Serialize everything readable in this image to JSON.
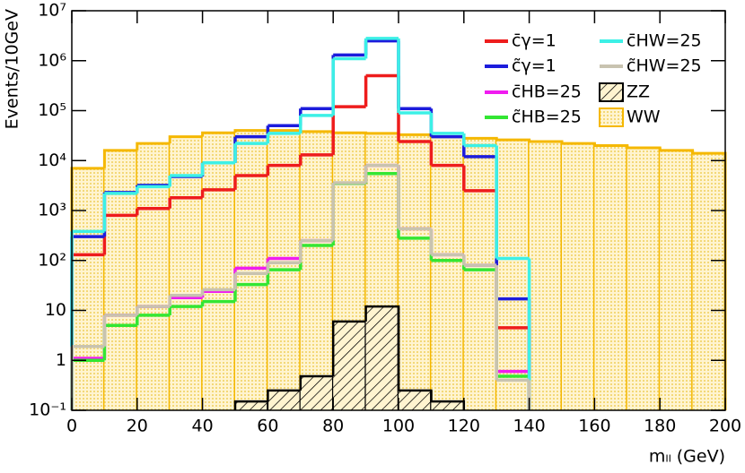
{
  "chart_data": {
    "type": "histogram",
    "xlabel": "mₗₗ (GeV)",
    "ylabel": "Events/10GeV",
    "yscale": "log",
    "legend": "top-right",
    "bins": [
      0,
      10,
      20,
      30,
      40,
      50,
      60,
      70,
      80,
      90,
      100,
      110,
      120,
      130,
      140,
      150,
      160,
      170,
      180,
      190,
      200
    ],
    "xlim": [
      0,
      200
    ],
    "xticks": [
      0,
      20,
      40,
      60,
      80,
      100,
      120,
      140,
      160,
      180,
      200
    ],
    "ylim": [
      0.1,
      10000000
    ],
    "yticks": [
      {
        "value": 0.1,
        "label": "10⁻¹"
      },
      1,
      10,
      {
        "value": 100,
        "label": "10²"
      },
      {
        "value": 1000,
        "label": "10³"
      },
      {
        "value": 10000,
        "label": "10⁴"
      },
      {
        "value": 100000,
        "label": "10⁵"
      },
      {
        "value": 1000000,
        "label": "10⁶"
      },
      {
        "value": 10000000,
        "label": "10⁷"
      }
    ],
    "series": [
      {
        "name": "c̄γ=1",
        "color": "#ee1c1c",
        "values": [
          130,
          800,
          1100,
          1800,
          2600,
          5000,
          8000,
          13000,
          120000,
          500000,
          24000,
          8000,
          2500,
          4.5,
          null,
          null,
          null,
          null,
          null,
          null
        ]
      },
      {
        "name": "c̃γ=1",
        "color": "#1c1cdc",
        "values": [
          300,
          2300,
          3200,
          4800,
          9000,
          30000,
          50000,
          110000,
          1300000,
          2500000,
          110000,
          30000,
          12000,
          17,
          null,
          null,
          null,
          null,
          null,
          null
        ]
      },
      {
        "name": "c̄HB=25",
        "color": "#f01cf0",
        "values": [
          1.1,
          8,
          12,
          18,
          24,
          70,
          110,
          250,
          3500,
          8000,
          430,
          130,
          80,
          0.6,
          null,
          null,
          null,
          null,
          null,
          null
        ]
      },
      {
        "name": "c̃HB=25",
        "color": "#33e633",
        "values": [
          1.0,
          5,
          8,
          12,
          15,
          33,
          65,
          200,
          3500,
          5500,
          280,
          100,
          65,
          0.48,
          null,
          null,
          null,
          null,
          null,
          null
        ]
      },
      {
        "name": "c̄HW=25",
        "color": "#3cf0e6",
        "values": [
          380,
          2200,
          3000,
          5000,
          9000,
          22000,
          35000,
          80000,
          1100000,
          2800000,
          90000,
          35000,
          20000,
          110,
          null,
          null,
          null,
          null,
          null,
          null
        ]
      },
      {
        "name": "c̃HW=25",
        "color": "#c8c3b0",
        "values": [
          1.9,
          8,
          12,
          20,
          26,
          55,
          90,
          250,
          3600,
          8000,
          430,
          130,
          80,
          0.4,
          null,
          null,
          null,
          null,
          null,
          null
        ]
      },
      {
        "name": "ZZ",
        "color": "#000000",
        "fill_pattern": "hatch",
        "values": [
          null,
          null,
          null,
          null,
          null,
          0.15,
          0.25,
          0.48,
          6,
          12,
          0.25,
          0.15,
          null,
          null,
          null,
          null,
          null,
          null,
          null,
          null
        ]
      },
      {
        "name": "WW",
        "color": "#f5b800",
        "fill_pattern": "dots",
        "values": [
          7000,
          16000,
          22000,
          30000,
          36000,
          40000,
          40000,
          38000,
          36000,
          35000,
          33000,
          30000,
          28000,
          26000,
          24000,
          22000,
          20000,
          18000,
          16000,
          14000
        ]
      }
    ]
  }
}
